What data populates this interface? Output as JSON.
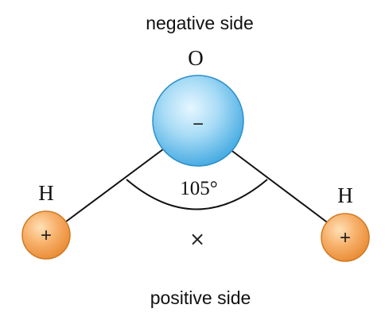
{
  "labels": {
    "negative_side": "negative side",
    "positive_side": "positive side",
    "oxygen": "O",
    "hydrogen_left": "H",
    "hydrogen_right": "H",
    "angle": "105°",
    "oxygen_charge": "−",
    "hydrogen_left_charge": "+",
    "hydrogen_right_charge": "+",
    "center_marker": "×"
  },
  "colors": {
    "oxygen_fill": "#8fd0f2",
    "oxygen_edge": "#2e8fca",
    "hydrogen_fill": "#f3a85a",
    "hydrogen_edge": "#d07a24",
    "bond": "#111111"
  }
}
